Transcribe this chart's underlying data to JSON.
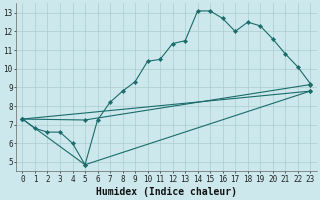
{
  "xlabel": "Humidex (Indice chaleur)",
  "bg_color": "#cce8ec",
  "grid_color": "#aacccc",
  "line_color": "#1a6b6b",
  "xlim": [
    -0.5,
    23.5
  ],
  "ylim": [
    4.5,
    13.5
  ],
  "xticks": [
    0,
    1,
    2,
    3,
    4,
    5,
    6,
    7,
    8,
    9,
    10,
    11,
    12,
    13,
    14,
    15,
    16,
    17,
    18,
    19,
    20,
    21,
    22,
    23
  ],
  "yticks": [
    5,
    6,
    7,
    8,
    9,
    10,
    11,
    12,
    13
  ],
  "line1_x": [
    0,
    1,
    2,
    3,
    4,
    5,
    6,
    7,
    8,
    9,
    10,
    11,
    12,
    13,
    14,
    15,
    16,
    17,
    18,
    19,
    20,
    21,
    22,
    23
  ],
  "line1_y": [
    7.3,
    6.8,
    6.6,
    6.6,
    6.0,
    4.85,
    7.25,
    8.2,
    8.8,
    9.3,
    10.4,
    10.5,
    11.35,
    11.5,
    13.1,
    13.1,
    12.7,
    12.0,
    12.5,
    12.3,
    11.6,
    10.8,
    10.1,
    9.2
  ],
  "line2_x": [
    0,
    23
  ],
  "line2_y": [
    7.3,
    8.8
  ],
  "line3_x": [
    0,
    5,
    23
  ],
  "line3_y": [
    7.3,
    7.25,
    9.15
  ],
  "line4_x": [
    0,
    5,
    23
  ],
  "line4_y": [
    7.3,
    4.85,
    8.8
  ],
  "marker": "D",
  "marker_size": 2.2,
  "line_width": 0.8,
  "xlabel_fontsize": 7,
  "tick_fontsize": 5.5
}
